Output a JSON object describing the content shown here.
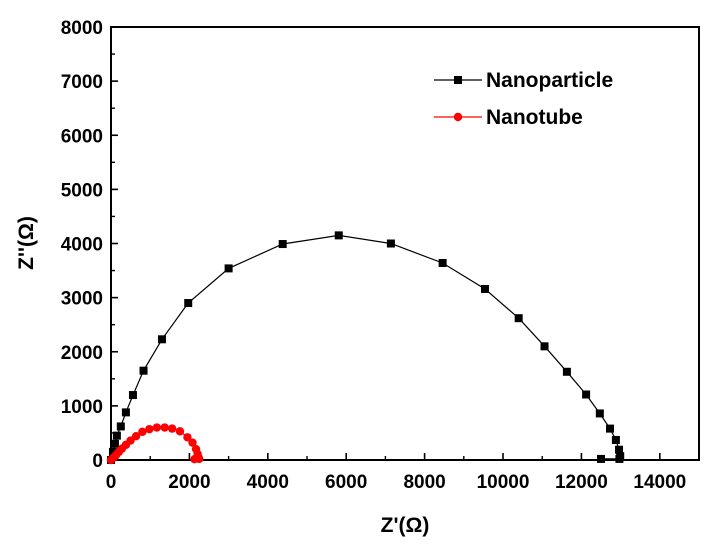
{
  "chart_data": {
    "type": "scatter",
    "xlabel": "Z'(Ω)",
    "ylabel": "Z''(Ω)",
    "xlim": [
      0,
      15000
    ],
    "ylim": [
      0,
      8000
    ],
    "xticks": [
      0,
      2000,
      4000,
      6000,
      8000,
      10000,
      12000,
      14000
    ],
    "yticks": [
      0,
      1000,
      2000,
      3000,
      4000,
      5000,
      6000,
      7000,
      8000
    ],
    "grid": false,
    "legend_position": "top-right",
    "series": [
      {
        "name": "Nanoparticle",
        "color": "#000000",
        "marker": "square",
        "points": [
          [
            0,
            0
          ],
          [
            50,
            150
          ],
          [
            100,
            300
          ],
          [
            150,
            450
          ],
          [
            250,
            620
          ],
          [
            380,
            880
          ],
          [
            560,
            1200
          ],
          [
            830,
            1650
          ],
          [
            1300,
            2230
          ],
          [
            1970,
            2900
          ],
          [
            3000,
            3540
          ],
          [
            4380,
            3990
          ],
          [
            5810,
            4150
          ],
          [
            7140,
            4000
          ],
          [
            8460,
            3640
          ],
          [
            9540,
            3160
          ],
          [
            10400,
            2620
          ],
          [
            11060,
            2100
          ],
          [
            11630,
            1630
          ],
          [
            12120,
            1210
          ],
          [
            12470,
            860
          ],
          [
            12730,
            580
          ],
          [
            12880,
            370
          ],
          [
            12960,
            190
          ],
          [
            12990,
            70
          ],
          [
            12970,
            20
          ],
          [
            12500,
            20
          ]
        ]
      },
      {
        "name": "Nanotube",
        "color": "#ff0000",
        "marker": "circle",
        "points": [
          [
            0,
            0
          ],
          [
            60,
            40
          ],
          [
            130,
            90
          ],
          [
            200,
            150
          ],
          [
            280,
            210
          ],
          [
            380,
            280
          ],
          [
            500,
            360
          ],
          [
            640,
            440
          ],
          [
            800,
            520
          ],
          [
            980,
            570
          ],
          [
            1170,
            600
          ],
          [
            1370,
            600
          ],
          [
            1560,
            580
          ],
          [
            1760,
            530
          ],
          [
            1950,
            420
          ],
          [
            2080,
            320
          ],
          [
            2170,
            200
          ],
          [
            2210,
            110
          ],
          [
            2240,
            40
          ],
          [
            2250,
            20
          ],
          [
            2130,
            15
          ]
        ]
      }
    ]
  }
}
